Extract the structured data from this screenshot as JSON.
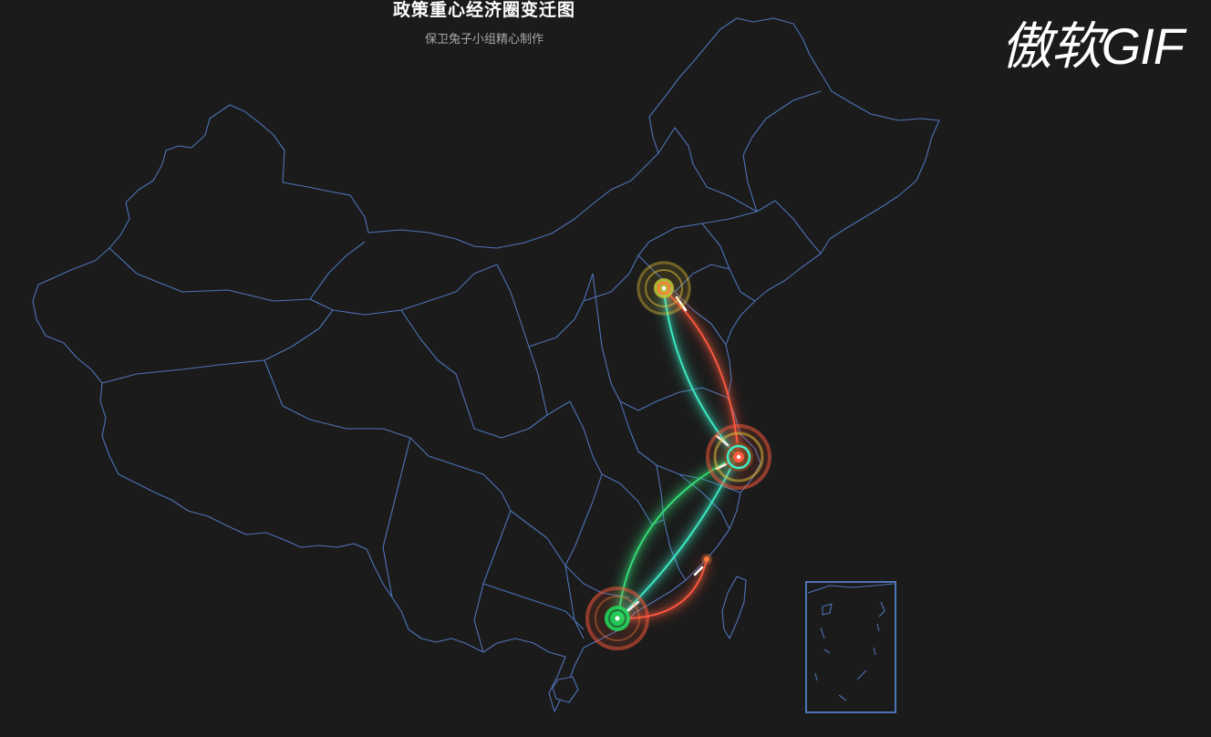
{
  "title": "政策重心经济圈变迁图",
  "subtitle": "保卫兔子小组精心制作",
  "watermark": "傲软GIF",
  "colors": {
    "background": "#1b1b1b",
    "map_border": "#4f73b8",
    "route_red": "#ff5a3c",
    "route_cyan": "#3ef0c8",
    "route_green": "#35e07a",
    "node_yellow": "#e6c53a",
    "node_green": "#22d45a"
  },
  "map": {
    "region": "China",
    "inset": "South China Sea islands",
    "nodes": [
      {
        "id": "beijing",
        "name": "Beijing",
        "color": "#e6c53a",
        "size": "medium"
      },
      {
        "id": "shanghai",
        "name": "Shanghai",
        "color": "#ff5a3c",
        "size": "large"
      },
      {
        "id": "guangzhou",
        "name": "Guangzhou",
        "color": "#22d45a",
        "size": "large"
      },
      {
        "id": "fuzhou",
        "name": "Fuzhou",
        "color": "#ff7a3c",
        "size": "small"
      }
    ],
    "routes": [
      {
        "from": "beijing",
        "to": "shanghai",
        "color": "#ff5a3c"
      },
      {
        "from": "beijing",
        "to": "shanghai",
        "color": "#3ef0c8"
      },
      {
        "from": "shanghai",
        "to": "guangzhou",
        "color": "#3ef0c8"
      },
      {
        "from": "guangzhou",
        "to": "shanghai",
        "color": "#35e07a"
      },
      {
        "from": "guangzhou",
        "to": "fuzhou",
        "color": "#ff5a3c"
      }
    ]
  }
}
